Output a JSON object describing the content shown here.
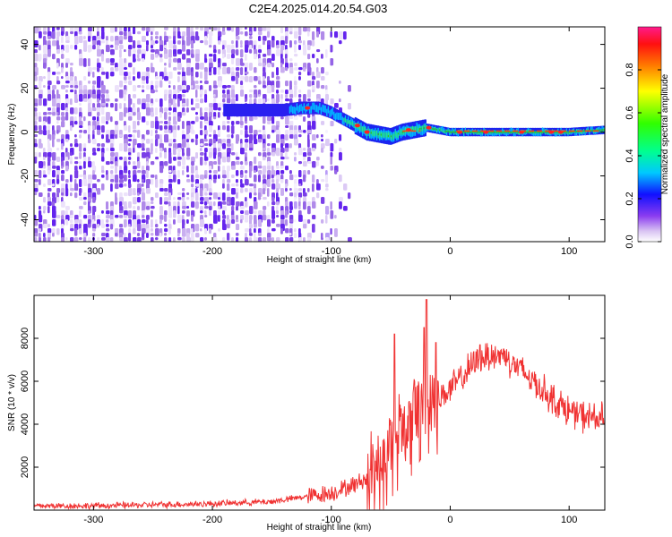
{
  "figure": {
    "title": "C2E4.2025.014.20.54.G03"
  },
  "chart_data": [
    {
      "type": "heatmap",
      "xlabel": "Height of straight line (km)",
      "ylabel": "Frequency (Hz)",
      "xlim": [
        -350,
        130
      ],
      "ylim": [
        -50,
        48
      ],
      "xticks": [
        -300,
        -200,
        -100,
        0,
        100
      ],
      "yticks": [
        -40,
        -20,
        0,
        20,
        40
      ],
      "noise_region_x": [
        -350,
        -88
      ],
      "ridge": {
        "x": [
          -190,
          -165,
          -140,
          -125,
          -110,
          -100,
          -90,
          -80,
          -70,
          -60,
          -50,
          -40,
          -30,
          -20,
          -10,
          0,
          20,
          60,
          100,
          130
        ],
        "y": [
          10,
          10,
          10,
          11,
          11,
          9,
          6,
          3,
          0,
          -1,
          -2,
          0,
          1,
          2,
          1,
          0,
          0,
          0,
          0,
          1
        ]
      },
      "colorbar": {
        "label": "Normalized spectral amplitude",
        "ticks": [
          0.0,
          0.2,
          0.4,
          0.6,
          0.8
        ],
        "range": [
          0,
          1
        ]
      }
    },
    {
      "type": "line",
      "xlabel": "Height of straight line (km)",
      "ylabel": "SNR (10 * v/v)",
      "xlim": [
        -350,
        130
      ],
      "ylim": [
        0,
        10000
      ],
      "xticks": [
        -300,
        -200,
        -100,
        0,
        100
      ],
      "yticks": [
        2000,
        4000,
        6000,
        8000
      ],
      "line_color": "#f03232",
      "series": [
        {
          "x": [
            -350,
            -300,
            -250,
            -200,
            -150,
            -100,
            -80,
            -70,
            -60,
            -50,
            -40,
            -35,
            -30,
            -25,
            -20,
            -15,
            -10,
            0,
            10,
            20,
            30,
            40,
            50,
            60,
            70,
            80,
            90,
            100,
            110,
            120,
            130
          ],
          "values": [
            200,
            200,
            250,
            300,
            400,
            800,
            1200,
            1500,
            2200,
            3200,
            3800,
            4000,
            4500,
            5000,
            5200,
            5400,
            5200,
            5600,
            6200,
            6800,
            7200,
            7200,
            7000,
            6500,
            6000,
            5500,
            5000,
            4600,
            4400,
            4300,
            4200
          ],
          "spikes": [
            [
              -47,
              8200
            ],
            [
              -20,
              9800
            ],
            [
              -22,
              8500
            ],
            [
              -12,
              7800
            ],
            [
              25,
              7700
            ],
            [
              45,
              7500
            ]
          ]
        }
      ]
    }
  ]
}
